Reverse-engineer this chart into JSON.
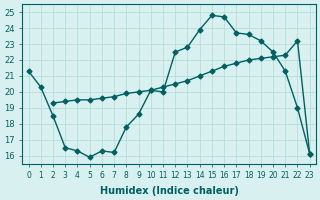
{
  "line1_x": [
    0,
    1,
    2,
    3,
    4,
    5,
    6,
    7,
    8,
    9,
    10,
    11,
    12,
    13,
    14,
    15,
    16,
    17,
    18,
    19,
    20,
    21,
    22,
    23
  ],
  "line1_y": [
    21.3,
    20.3,
    18.5,
    16.5,
    16.3,
    15.9,
    16.3,
    16.2,
    17.8,
    18.6,
    20.1,
    20.0,
    22.5,
    22.8,
    23.9,
    24.8,
    24.7,
    23.7,
    23.6,
    23.2,
    22.5,
    21.3,
    19.0,
    16.1
  ],
  "line2_x": [
    2,
    3,
    4,
    5,
    6,
    7,
    8,
    9,
    10,
    11,
    12,
    13,
    14,
    15,
    16,
    17,
    18,
    19,
    20,
    21,
    22,
    23
  ],
  "line2_y": [
    19.3,
    19.4,
    19.5,
    19.5,
    19.6,
    19.7,
    19.9,
    20.0,
    20.1,
    20.3,
    20.5,
    20.7,
    21.0,
    21.3,
    21.6,
    21.8,
    22.0,
    22.1,
    22.2,
    22.3,
    23.2,
    16.1
  ],
  "color": "#006060",
  "bg_color": "#d8f0f0",
  "grid_color": "#b0d8d8",
  "xlabel": "Humidex (Indice chaleur)",
  "xlim": [
    -0.5,
    23.5
  ],
  "ylim": [
    15.5,
    25.5
  ],
  "yticks": [
    16,
    17,
    18,
    19,
    20,
    21,
    22,
    23,
    24,
    25
  ],
  "xticks": [
    0,
    1,
    2,
    3,
    4,
    5,
    6,
    7,
    8,
    9,
    10,
    11,
    12,
    13,
    14,
    15,
    16,
    17,
    18,
    19,
    20,
    21,
    22,
    23
  ],
  "marker": "D",
  "markersize": 2.5,
  "linewidth": 1.0
}
